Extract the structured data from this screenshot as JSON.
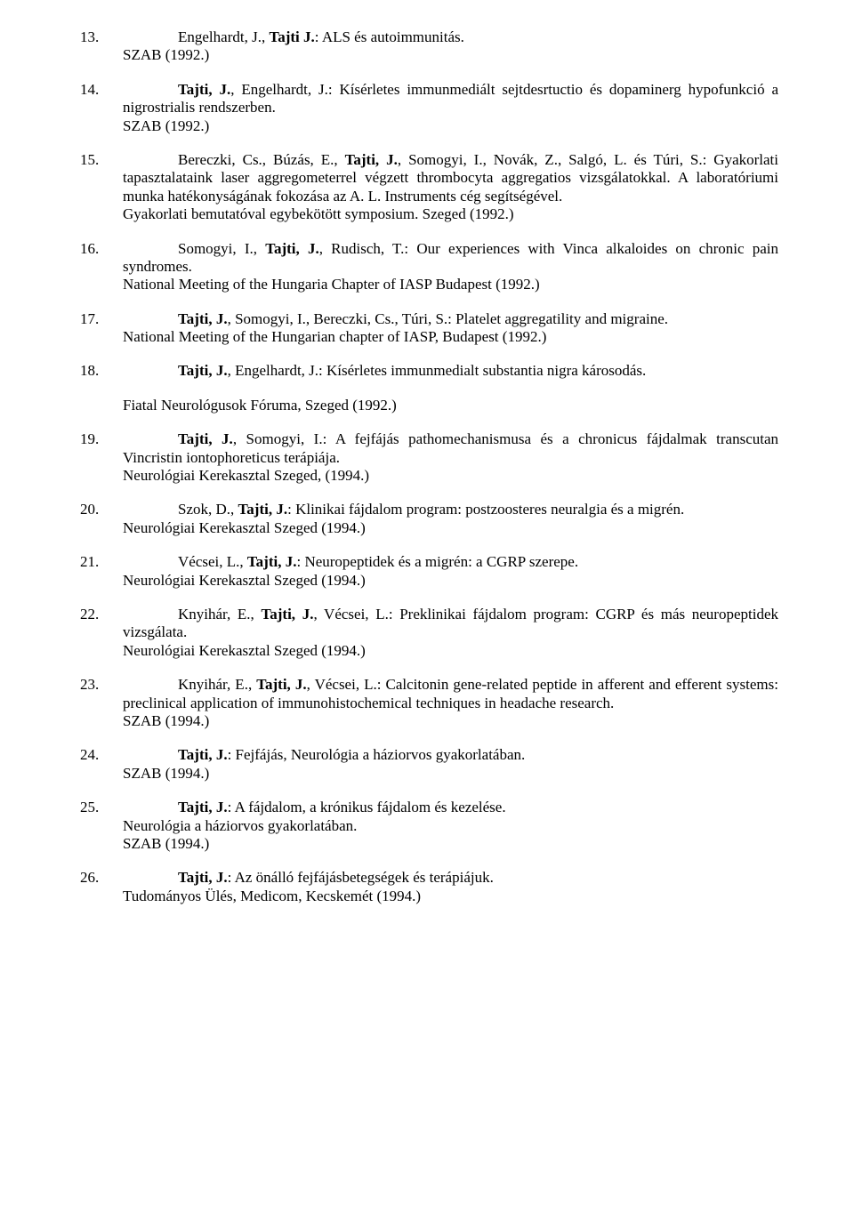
{
  "entries": [
    {
      "num": "13.",
      "lead_prefix": "Engelhardt, J., ",
      "lead_bold": "Tajti J.",
      "lead_suffix": ": ALS és autoimmunitás.",
      "lines": [
        "SZAB (1992.)"
      ]
    },
    {
      "num": "14.",
      "lead_prefix": "",
      "lead_bold": "Tajti, J.",
      "lead_suffix": ", Engelhardt, J.: Kísérletes immunmediált sejtdesrtuctio és dopaminerg hypofunkció a nigrostrialis rendszerben.",
      "lines": [
        "SZAB (1992.)"
      ]
    },
    {
      "num": "15.",
      "lead_prefix": "Bereczki, Cs., Búzás, E., ",
      "lead_bold": "Tajti, J.",
      "lead_suffix": ", Somogyi, I., Novák, Z., Salgó, L. és Túri, S.: Gyakorlati tapasztalataink laser aggregometerrel végzett thrombocyta aggregatios vizsgálatokkal. A laboratóriumi munka hatékonyságának fokozása az A. L. Instruments cég segítségével.",
      "lines": [
        "Gyakorlati bemutatóval egybekötött symposium. Szeged (1992.)"
      ]
    },
    {
      "num": "16.",
      "lead_prefix": "Somogyi, I., ",
      "lead_bold": "Tajti, J.",
      "lead_suffix": ", Rudisch, T.: Our experiences with Vinca alkaloides on chronic pain syndromes.",
      "lines": [
        "National Meeting of the Hungaria Chapter of IASP Budapest (1992.)"
      ]
    },
    {
      "num": "17.",
      "lead_prefix": "",
      "lead_bold": "Tajti, J.",
      "lead_suffix": ", Somogyi, I., Bereczki, Cs., Túri, S.: Platelet aggregatility and migraine.",
      "lines": [
        "National Meeting of the Hungarian chapter of IASP, Budapest (1992.)"
      ]
    },
    {
      "num": "18.",
      "lead_prefix": "",
      "lead_bold": "Tajti, J.",
      "lead_suffix": ", Engelhardt, J.: Kísérletes immunmedialt substantia nigra károsodás.",
      "lines": [],
      "detached": [
        "Fiatal Neurológusok Fóruma, Szeged (1992.)"
      ]
    },
    {
      "num": "19.",
      "lead_prefix": "",
      "lead_bold": "Tajti, J.",
      "lead_suffix": ", Somogyi, I.: A fejfájás pathomechanismusa és a chronicus fájdalmak transcutan Vincristin iontophoreticus terápiája.",
      "lines": [
        "Neurológiai Kerekasztal Szeged, (1994.)"
      ]
    },
    {
      "num": "20.",
      "lead_prefix": "Szok, D., ",
      "lead_bold": "Tajti, J.",
      "lead_suffix": ": Klinikai fájdalom program: postzoosteres neuralgia és a migrén.",
      "lines": [
        "Neurológiai Kerekasztal Szeged (1994.)"
      ]
    },
    {
      "num": "21.",
      "lead_prefix": "Vécsei, L., ",
      "lead_bold": "Tajti, J.",
      "lead_suffix": ": Neuropeptidek és a migrén: a CGRP szerepe.",
      "lines": [
        "Neurológiai Kerekasztal Szeged (1994.)"
      ]
    },
    {
      "num": "22.",
      "lead_prefix": "Knyihár, E., ",
      "lead_bold": "Tajti, J.",
      "lead_suffix": ", Vécsei, L.: Preklinikai fájdalom program: CGRP és más neuropeptidek vizsgálata.",
      "lines": [
        "Neurológiai Kerekasztal Szeged (1994.)"
      ]
    },
    {
      "num": "23.",
      "lead_prefix": "Knyihár, E., ",
      "lead_bold": "Tajti, J.",
      "lead_suffix": ", Vécsei, L.: Calcitonin gene-related peptide in afferent and efferent systems: preclinical application of immunohistochemical techniques in headache research.",
      "lines": [
        "SZAB (1994.)"
      ]
    },
    {
      "num": "24.",
      "lead_prefix": "",
      "lead_bold": "Tajti, J.",
      "lead_suffix": ": Fejfájás, Neurológia a háziorvos gyakorlatában.",
      "lines": [
        "SZAB (1994.)"
      ]
    },
    {
      "num": "25.",
      "lead_prefix": "",
      "lead_bold": "Tajti, J.",
      "lead_suffix": ": A fájdalom, a krónikus fájdalom és kezelése.",
      "lines": [
        "Neurológia a háziorvos gyakorlatában.",
        "SZAB (1994.)"
      ]
    },
    {
      "num": "26.",
      "lead_prefix": "",
      "lead_bold": "Tajti, J.",
      "lead_suffix": ": Az önálló fejfájásbetegségek és terápiájuk.",
      "lines": [
        "Tudományos Ülés, Medicom, Kecskemét (1994.)"
      ]
    }
  ]
}
